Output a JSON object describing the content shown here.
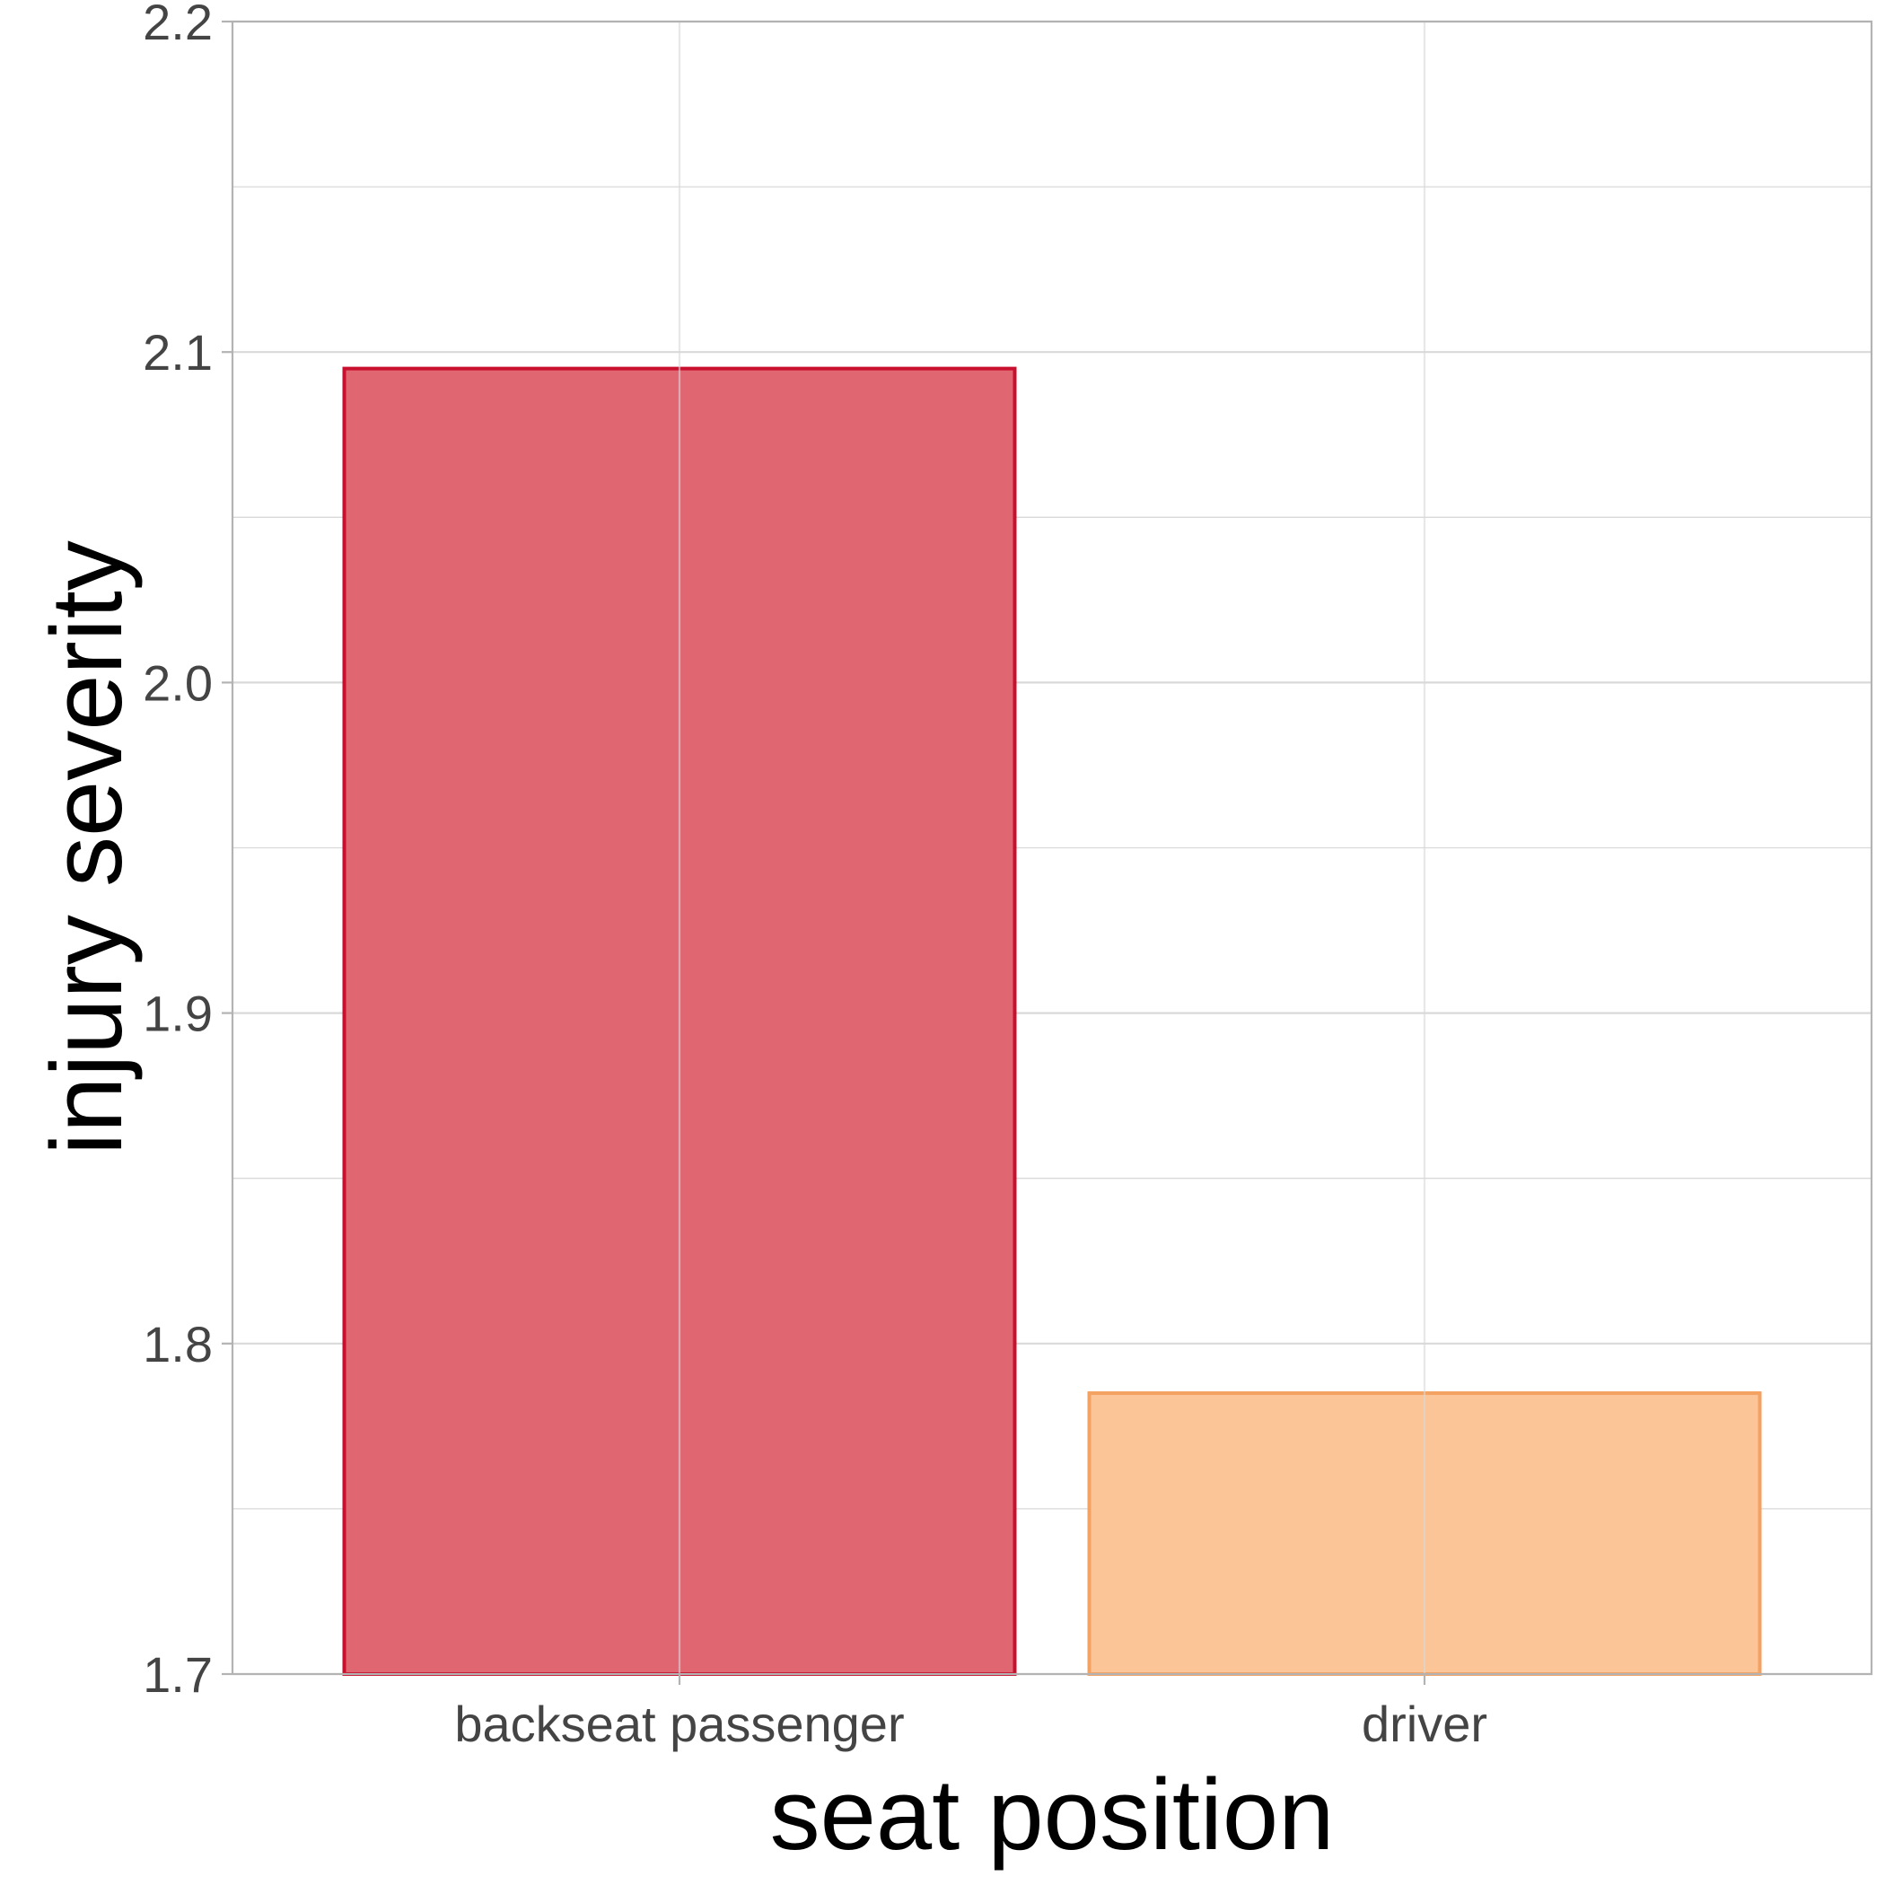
{
  "chart_data": {
    "type": "bar",
    "title": "",
    "xlabel": "seat position",
    "ylabel": "injury severity",
    "categories": [
      "backseat passenger",
      "driver"
    ],
    "values": [
      2.095,
      1.785
    ],
    "ylim": [
      1.7,
      2.2
    ],
    "yticks": [
      "1.7",
      "1.8",
      "1.9",
      "2.0",
      "2.1",
      "2.2"
    ],
    "ytick_values": [
      1.7,
      1.8,
      1.9,
      2.0,
      2.1,
      2.2
    ],
    "grid": true,
    "legend": "none",
    "colors": {
      "fills": [
        "#e06672",
        "#fbc598"
      ],
      "strokes": [
        "#c8102e",
        "#f4a261"
      ],
      "grid": "#d9d9d9",
      "panel_border": "#b3b3b3"
    }
  }
}
